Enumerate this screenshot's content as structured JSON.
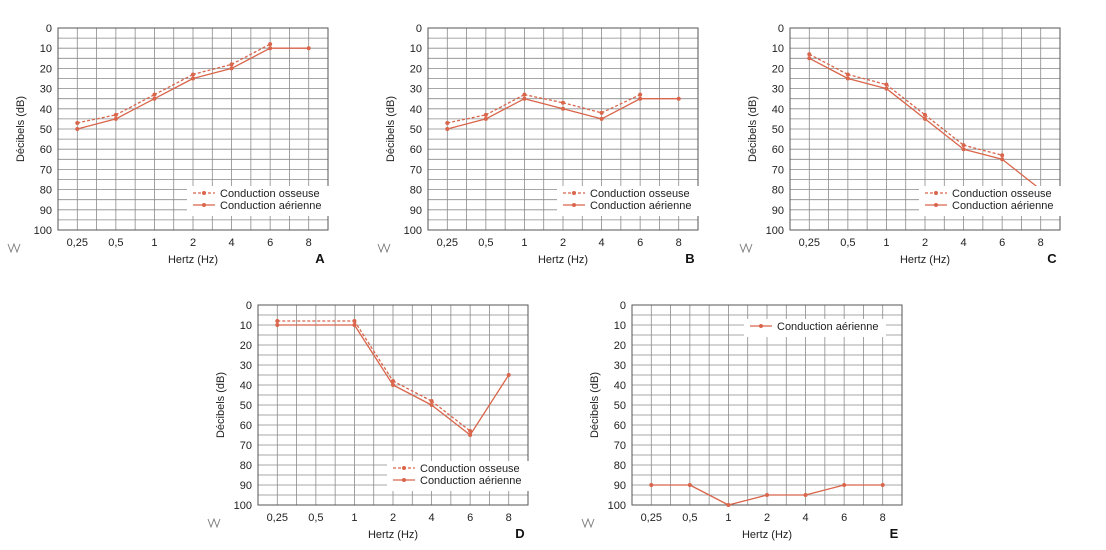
{
  "style": {
    "curve_color": "#d9654b",
    "grid_color": "#8a8a8a"
  },
  "chart_data": [
    {
      "panel": "A",
      "type": "line",
      "xlabel": "Hertz (Hz)",
      "ylabel": "Décibels (dB)",
      "categories": [
        "0,25",
        "0,5",
        "1",
        "2",
        "4",
        "6",
        "8"
      ],
      "ylim": [
        0,
        100
      ],
      "y_inverted": true,
      "yticks": [
        0,
        10,
        20,
        30,
        40,
        50,
        60,
        70,
        80,
        90,
        100
      ],
      "grid": true,
      "legend_position": "bottom-right",
      "series": [
        {
          "name": "Conduction osseuse",
          "style": "dashed",
          "values": [
            47,
            43,
            33,
            23,
            18,
            8,
            null
          ]
        },
        {
          "name": "Conduction aérienne",
          "style": "solid",
          "values": [
            50,
            45,
            35,
            25,
            20,
            10,
            10
          ]
        }
      ]
    },
    {
      "panel": "B",
      "type": "line",
      "xlabel": "Hertz (Hz)",
      "ylabel": "Décibels (dB)",
      "categories": [
        "0,25",
        "0,5",
        "1",
        "2",
        "4",
        "6",
        "8"
      ],
      "ylim": [
        0,
        100
      ],
      "y_inverted": true,
      "yticks": [
        0,
        10,
        20,
        30,
        40,
        50,
        60,
        70,
        80,
        90,
        100
      ],
      "grid": true,
      "legend_position": "bottom-right",
      "series": [
        {
          "name": "Conduction osseuse",
          "style": "dashed",
          "values": [
            47,
            43,
            33,
            37,
            42,
            33,
            null
          ]
        },
        {
          "name": "Conduction aérienne",
          "style": "solid",
          "values": [
            50,
            45,
            35,
            40,
            45,
            35,
            35
          ]
        }
      ]
    },
    {
      "panel": "C",
      "type": "line",
      "xlabel": "Hertz (Hz)",
      "ylabel": "Décibels (dB)",
      "categories": [
        "0,25",
        "0,5",
        "1",
        "2",
        "4",
        "6",
        "8"
      ],
      "ylim": [
        0,
        100
      ],
      "y_inverted": true,
      "yticks": [
        0,
        10,
        20,
        30,
        40,
        50,
        60,
        70,
        80,
        90,
        100
      ],
      "grid": true,
      "legend_position": "bottom-right",
      "series": [
        {
          "name": "Conduction osseuse",
          "style": "dashed",
          "values": [
            13,
            23,
            28,
            43,
            58,
            63,
            null
          ]
        },
        {
          "name": "Conduction aérienne",
          "style": "solid",
          "values": [
            15,
            25,
            30,
            45,
            60,
            65,
            80
          ]
        }
      ]
    },
    {
      "panel": "D",
      "type": "line",
      "xlabel": "Hertz (Hz)",
      "ylabel": "Décibels (dB)",
      "categories": [
        "0,25",
        "0,5",
        "1",
        "2",
        "4",
        "6",
        "8"
      ],
      "ylim": [
        0,
        100
      ],
      "y_inverted": true,
      "yticks": [
        0,
        10,
        20,
        30,
        40,
        50,
        60,
        70,
        80,
        90,
        100
      ],
      "grid": true,
      "legend_position": "bottom-right",
      "series": [
        {
          "name": "Conduction osseuse",
          "style": "dashed",
          "values": [
            8,
            null,
            8,
            38,
            48,
            63,
            null
          ]
        },
        {
          "name": "Conduction aérienne",
          "style": "solid",
          "values": [
            10,
            null,
            10,
            40,
            50,
            65,
            35
          ]
        }
      ]
    },
    {
      "panel": "E",
      "type": "line",
      "xlabel": "Hertz (Hz)",
      "ylabel": "Décibels (dB)",
      "categories": [
        "0,25",
        "0,5",
        "1",
        "2",
        "4",
        "6",
        "8"
      ],
      "ylim": [
        0,
        100
      ],
      "y_inverted": true,
      "yticks": [
        0,
        10,
        20,
        30,
        40,
        50,
        60,
        70,
        80,
        90,
        100
      ],
      "grid": true,
      "legend_position": "top-right",
      "series": [
        {
          "name": "Conduction aérienne",
          "style": "solid",
          "values": [
            90,
            90,
            100,
            95,
            95,
            90,
            90
          ]
        }
      ]
    }
  ]
}
